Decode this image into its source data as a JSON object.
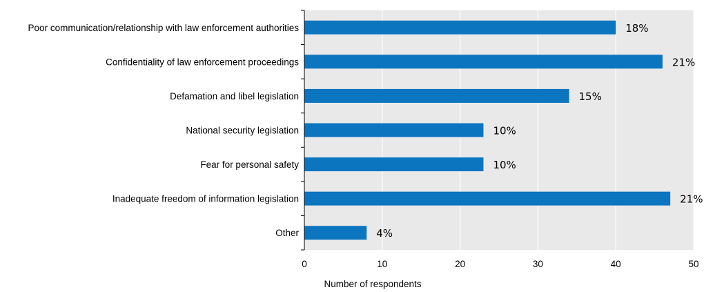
{
  "chart_data": {
    "type": "bar",
    "orientation": "horizontal",
    "categories": [
      "Poor communication/relationship with law enforcement authorities",
      "Confidentiality of law enforcement proceedings",
      "Defamation and libel legislation",
      "National security legislation",
      "Fear for personal safety",
      "Inadequate freedom of information legislation",
      "Other"
    ],
    "values": [
      40,
      46,
      34,
      23,
      23,
      47,
      8
    ],
    "data_labels": [
      "18%",
      "21%",
      "15%",
      "10%",
      "10%",
      "21%",
      "4%"
    ],
    "xlabel": "Number of respondents",
    "ylabel": "",
    "xlim": [
      0,
      50
    ],
    "xticks": [
      "0",
      "10",
      "20",
      "30",
      "40",
      "50"
    ],
    "grid": "vertical",
    "colors": {
      "bar": "#0b75c0",
      "plot_background": "#e9e9e9",
      "gridline": "#ffffff"
    }
  }
}
